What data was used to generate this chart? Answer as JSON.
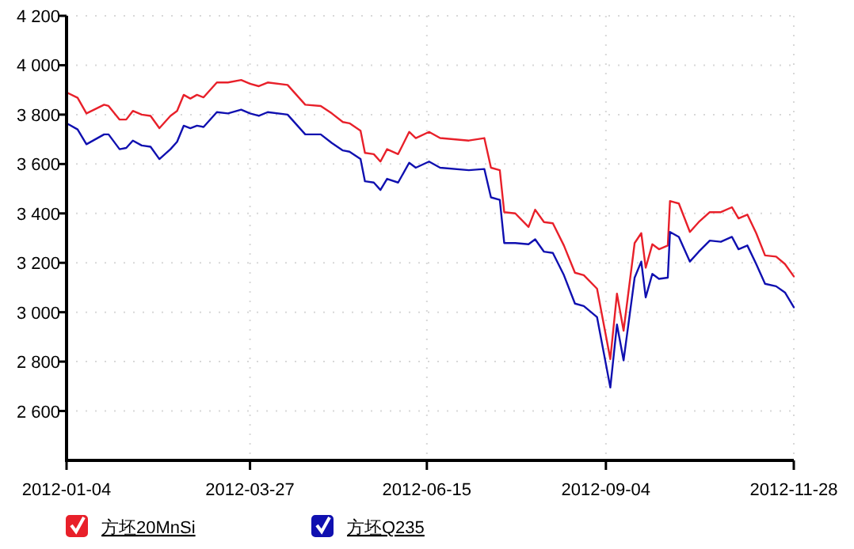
{
  "chart_data": {
    "type": "line",
    "x": [
      "2012-01-04",
      "2012-01-09",
      "2012-01-13",
      "2012-01-21",
      "2012-01-23",
      "2012-01-28",
      "2012-01-31",
      "2012-02-03",
      "2012-02-07",
      "2012-02-11",
      "2012-02-15",
      "2012-02-20",
      "2012-02-23",
      "2012-02-26",
      "2012-02-29",
      "2012-03-03",
      "2012-03-06",
      "2012-03-12",
      "2012-03-17",
      "2012-03-23",
      "2012-03-27",
      "2012-03-31",
      "2012-04-04",
      "2012-04-13",
      "2012-04-21",
      "2012-04-28",
      "2012-05-03",
      "2012-05-08",
      "2012-05-11",
      "2012-05-16",
      "2012-05-18",
      "2012-05-22",
      "2012-05-25",
      "2012-05-28",
      "2012-06-02",
      "2012-06-07",
      "2012-06-10",
      "2012-06-16",
      "2012-06-21",
      "2012-07-04",
      "2012-07-11",
      "2012-07-14",
      "2012-07-18",
      "2012-07-20",
      "2012-07-25",
      "2012-07-31",
      "2012-08-03",
      "2012-08-07",
      "2012-08-11",
      "2012-08-16",
      "2012-08-21",
      "2012-08-25",
      "2012-08-31",
      "2012-09-06",
      "2012-09-09",
      "2012-09-12",
      "2012-09-17",
      "2012-09-20",
      "2012-09-22",
      "2012-09-25",
      "2012-09-28",
      "2012-10-02",
      "2012-10-03",
      "2012-10-07",
      "2012-10-12",
      "2012-10-16",
      "2012-10-21",
      "2012-10-26",
      "2012-10-31",
      "2012-11-03",
      "2012-11-07",
      "2012-11-11",
      "2012-11-15",
      "2012-11-20",
      "2012-11-24",
      "2012-11-28"
    ],
    "series": [
      {
        "name": "方坯20MnSi",
        "color": "#e8202a",
        "values": [
          3890,
          3868,
          3805,
          3840,
          3835,
          3780,
          3780,
          3815,
          3800,
          3795,
          3745,
          3795,
          3815,
          3880,
          3865,
          3880,
          3870,
          3930,
          3930,
          3940,
          3925,
          3915,
          3930,
          3920,
          3840,
          3835,
          3805,
          3770,
          3765,
          3735,
          3645,
          3640,
          3610,
          3660,
          3640,
          3730,
          3705,
          3730,
          3705,
          3695,
          3705,
          3585,
          3575,
          3405,
          3400,
          3345,
          3415,
          3365,
          3360,
          3270,
          3160,
          3150,
          3095,
          2810,
          3075,
          2925,
          3280,
          3320,
          3180,
          3275,
          3255,
          3270,
          3450,
          3440,
          3325,
          3365,
          3405,
          3405,
          3425,
          3380,
          3395,
          3320,
          3230,
          3225,
          3195,
          3145
        ]
      },
      {
        "name": "方坯Q235",
        "color": "#1010b0",
        "values": [
          3765,
          3740,
          3680,
          3720,
          3720,
          3660,
          3665,
          3695,
          3675,
          3670,
          3620,
          3660,
          3690,
          3755,
          3745,
          3755,
          3750,
          3810,
          3805,
          3820,
          3805,
          3795,
          3810,
          3800,
          3720,
          3720,
          3685,
          3655,
          3650,
          3620,
          3530,
          3525,
          3495,
          3540,
          3525,
          3605,
          3585,
          3610,
          3585,
          3575,
          3580,
          3465,
          3455,
          3280,
          3280,
          3275,
          3295,
          3245,
          3240,
          3150,
          3035,
          3025,
          2980,
          2695,
          2950,
          2805,
          3140,
          3205,
          3060,
          3155,
          3135,
          3140,
          3325,
          3305,
          3205,
          3245,
          3290,
          3285,
          3305,
          3255,
          3270,
          3195,
          3115,
          3105,
          3080,
          3020
        ]
      }
    ],
    "xlim": [
      "2012-01-04",
      "2012-11-28"
    ],
    "xticks": [
      "2012-01-04",
      "2012-03-27",
      "2012-06-15",
      "2012-09-04",
      "2012-11-28"
    ],
    "ylim": [
      2400,
      4200
    ],
    "yticks": [
      {
        "value": 2600,
        "label": "2 600"
      },
      {
        "value": 2800,
        "label": "2 800"
      },
      {
        "value": 3000,
        "label": "3 000"
      },
      {
        "value": 3200,
        "label": "3 200"
      },
      {
        "value": 3400,
        "label": "3 400"
      },
      {
        "value": 3600,
        "label": "3 600"
      },
      {
        "value": 3800,
        "label": "3 800"
      },
      {
        "value": 4000,
        "label": "4 000"
      },
      {
        "value": 4200,
        "label": "4 200"
      }
    ],
    "grid": true,
    "legend": "bottom left",
    "marker": "none",
    "line_style": "solid"
  }
}
